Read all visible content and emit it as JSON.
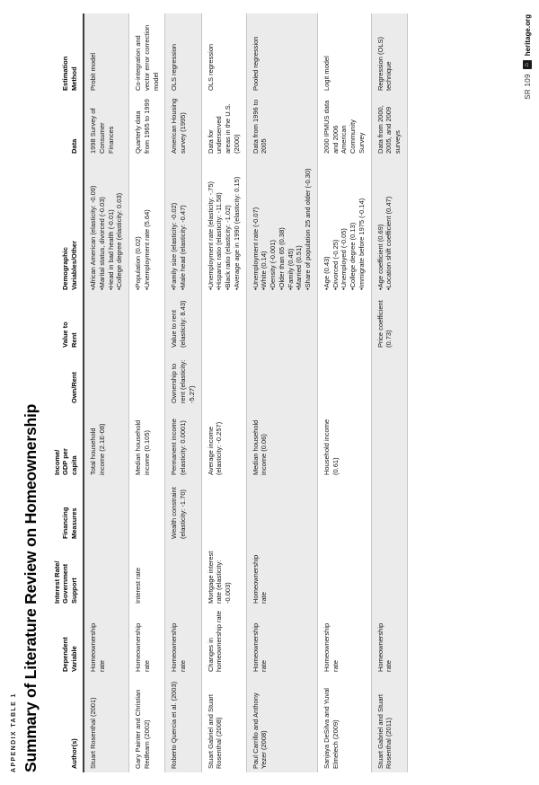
{
  "page": {
    "eyebrow": "APPENDIX TABLE 1",
    "title": "Summary of Literature Review on Homeownership",
    "footer": {
      "report_id": "SR 109",
      "site": "heritage.org"
    }
  },
  "table": {
    "columns": [
      "Author(s)",
      "Dependent\nVariable",
      "Interest Rate/\nGovernment Support",
      "Financing\nMeasures",
      "Income/\nGDP per\ncapita",
      "Own/Rent",
      "Value to\nRent",
      "Demographic\nVariables/Other",
      "Data",
      "Estimation\nMethod"
    ],
    "rows": [
      {
        "author": "Stuart Rosenthal (2001)",
        "dependent": "Homeownership rate",
        "interest": "",
        "financing": "",
        "income": "Total household income (2.1E-08)",
        "own_rent": "",
        "value_rent": "",
        "demographics": [
          "African American (elasticity: -0.09)",
          "Marital status, divorced (-0.03)",
          "Head in bad health (-0.01)",
          "College degree (elasticity: 0.03)"
        ],
        "data": "1998 Survey of Consumer Finances",
        "estimation": "Probit model"
      },
      {
        "author": "Gary Painter and Christian Redfearn (2002)",
        "dependent": "Homeownership rate",
        "interest": "Interest rate",
        "financing": "",
        "income": "Median household income (0.105)",
        "own_rent": "",
        "value_rent": "",
        "demographics": [
          "Population (0.02)",
          "Unemployment rate (5.64)"
        ],
        "data": "Quarterly data from 1965 to 1999",
        "estimation": "Co-integration and vector error correction model"
      },
      {
        "author": "Roberto Quercia et al. (2003)",
        "dependent": "Homeownership rate",
        "interest": "",
        "financing": "Wealth constraint (elasticity: -1.70)",
        "income": "Permanent income (elasticity: 0.0001)",
        "own_rent": "Ownership to rent (elasticity: -5.27)",
        "value_rent": "Value to rent (elasticity: 8.43)",
        "demographics": [
          "Family size (elasticity: -0.02)",
          "Male head (elasticity: -0.47)"
        ],
        "data": "American Housing survey (1995)",
        "estimation": "OLS regression"
      },
      {
        "author": "Stuart Gabriel and Stuart Rosenthal (2008)",
        "dependent": "Changes in homeownership rate",
        "interest": "Mortgage interest rate (elasticity: -0.003)",
        "financing": "",
        "income": "Average income (elasticity: -0.257)",
        "own_rent": "",
        "value_rent": "",
        "demographics": [
          "Unemployment rate (elasticity: -.75)",
          "Hispanic ratio (elasticity: -11.58)",
          "Black ratio (elasticity: -1.02)",
          "Average age in 1990 (elasticity: 0.15)"
        ],
        "data": "Data for underserved areas in the U.S. (2000)",
        "estimation": "OLS regression"
      },
      {
        "author": "Paul Carrillo and Anthony Yezer (2008)",
        "dependent": "Homeownership rate",
        "interest": "Homeownership rate",
        "financing": "",
        "income": "Median household income (0.06)",
        "own_rent": "",
        "value_rent": "",
        "demographics": [
          "Unemployment rate (-0.07)",
          "White (0.14)",
          "Density (-0.001)",
          "Older than 65 (0.38)",
          "Family (0.45)",
          "Married (0.51)",
          "Share of population 25 and older (-0.30)"
        ],
        "data": "Data from 1996 to 2005",
        "estimation": "Pooled regression"
      },
      {
        "author": "Sanjaya DeSilva and Yuval Elmelech (2009)",
        "dependent": "Homeownership rate",
        "interest": "",
        "financing": "",
        "income": "Household income (0.61)",
        "own_rent": "",
        "value_rent": "",
        "demographics": [
          "Age (0.43)",
          "Divorced (-0.25)",
          "Unemployed (-0.05)",
          "College degree (0.13)",
          "Immigrate before 1975 (-0.14)"
        ],
        "data": "2000 IPMUS data and 2006 American Community Survey",
        "estimation": "Logit model"
      },
      {
        "author": "Stuart Gabriel and Stuart Rosenthal (2011)",
        "dependent": "Homeownership rate",
        "interest": "",
        "financing": "",
        "income": "",
        "own_rent": "",
        "value_rent": "Price coefficient (0.73)",
        "demographics": [
          "Age coefficient (0.69)",
          "Location shift coefficient (0.47)"
        ],
        "data": "Data from 2000, 2005, and 2009 surveys",
        "estimation": "Regression (OLS) technique"
      }
    ]
  }
}
